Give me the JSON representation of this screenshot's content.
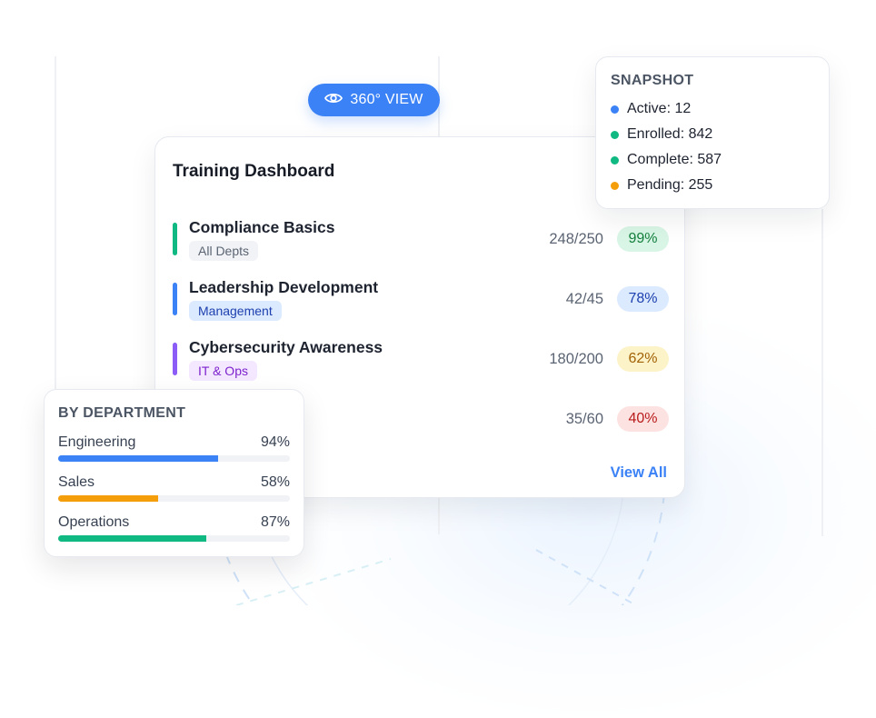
{
  "badge": {
    "label": "360° VIEW",
    "icon": "eye-icon"
  },
  "dashboard": {
    "title": "Training Dashboard",
    "view_all": "View All",
    "courses": [
      {
        "name": "Compliance Basics",
        "tag": "All Depts",
        "count": "248/250",
        "pct": "99%",
        "bar_color": "#10b981",
        "tag_bg": "#f1f3f6",
        "tag_color": "#5b6473",
        "pct_bg": "#d8f5e6",
        "pct_color": "#15803d"
      },
      {
        "name": "Leadership Development",
        "tag": "Management",
        "count": "42/45",
        "pct": "78%",
        "bar_color": "#3b82f6",
        "tag_bg": "#dbeafe",
        "tag_color": "#1e40af",
        "pct_bg": "#dbeafe",
        "pct_color": "#1e40af"
      },
      {
        "name": "Cybersecurity Awareness",
        "tag": "IT & Ops",
        "count": "180/200",
        "pct": "62%",
        "bar_color": "#8b5cf6",
        "tag_bg": "#f3e8ff",
        "tag_color": "#7e22ce",
        "pct_bg": "#fdf3c8",
        "pct_color": "#a16207"
      },
      {
        "name": "ent",
        "tag": "",
        "count": "35/60",
        "pct": "40%",
        "bar_color": "#ef4444",
        "tag_bg": "transparent",
        "tag_color": "#5b6473",
        "pct_bg": "#fde2e2",
        "pct_color": "#b91c1c"
      }
    ]
  },
  "snapshot": {
    "title": "SNAPSHOT",
    "items": [
      {
        "label": "Active: 12",
        "color": "#3b82f6"
      },
      {
        "label": "Enrolled: 842",
        "color": "#10b981"
      },
      {
        "label": "Complete: 587",
        "color": "#10b981"
      },
      {
        "label": "Pending: 255",
        "color": "#f59e0b"
      }
    ]
  },
  "departments": {
    "title": "BY DEPARTMENT",
    "items": [
      {
        "name": "Engineering",
        "pct": "94%",
        "fill": 0.69,
        "color": "#3b82f6"
      },
      {
        "name": "Sales",
        "pct": "58%",
        "fill": 0.43,
        "color": "#f59e0b"
      },
      {
        "name": "Operations",
        "pct": "87%",
        "fill": 0.64,
        "color": "#10b981"
      }
    ]
  }
}
